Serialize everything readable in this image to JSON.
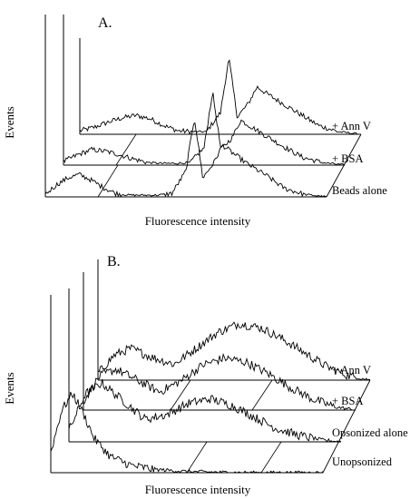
{
  "chart_data": [
    {
      "panel": "A.",
      "type": "line",
      "style": "3d-stacked-histogram",
      "xlabel": "Fluorescence intensity",
      "ylabel": "Events",
      "grid": false,
      "series": [
        {
          "name": "+ Ann V",
          "shape": [
            {
              "x": 0.0,
              "y": 4
            },
            {
              "x": 0.05,
              "y": 8
            },
            {
              "x": 0.1,
              "y": 14
            },
            {
              "x": 0.15,
              "y": 19
            },
            {
              "x": 0.2,
              "y": 22
            },
            {
              "x": 0.25,
              "y": 18
            },
            {
              "x": 0.3,
              "y": 10
            },
            {
              "x": 0.35,
              "y": 4
            },
            {
              "x": 0.4,
              "y": 3
            },
            {
              "x": 0.45,
              "y": 3
            },
            {
              "x": 0.5,
              "y": 25
            },
            {
              "x": 0.53,
              "y": 88
            },
            {
              "x": 0.56,
              "y": 20
            },
            {
              "x": 0.6,
              "y": 36
            },
            {
              "x": 0.63,
              "y": 55
            },
            {
              "x": 0.67,
              "y": 46
            },
            {
              "x": 0.72,
              "y": 36
            },
            {
              "x": 0.78,
              "y": 24
            },
            {
              "x": 0.85,
              "y": 10
            },
            {
              "x": 0.92,
              "y": 3
            },
            {
              "x": 1.0,
              "y": 0
            }
          ]
        },
        {
          "name": "+ BSA",
          "shape": [
            {
              "x": 0.0,
              "y": 4
            },
            {
              "x": 0.05,
              "y": 12
            },
            {
              "x": 0.1,
              "y": 18
            },
            {
              "x": 0.15,
              "y": 16
            },
            {
              "x": 0.2,
              "y": 12
            },
            {
              "x": 0.25,
              "y": 7
            },
            {
              "x": 0.3,
              "y": 3
            },
            {
              "x": 0.35,
              "y": 2
            },
            {
              "x": 0.4,
              "y": 2
            },
            {
              "x": 0.45,
              "y": 3
            },
            {
              "x": 0.5,
              "y": 20
            },
            {
              "x": 0.53,
              "y": 85
            },
            {
              "x": 0.56,
              "y": 18
            },
            {
              "x": 0.6,
              "y": 32
            },
            {
              "x": 0.63,
              "y": 52
            },
            {
              "x": 0.67,
              "y": 44
            },
            {
              "x": 0.72,
              "y": 34
            },
            {
              "x": 0.78,
              "y": 22
            },
            {
              "x": 0.85,
              "y": 9
            },
            {
              "x": 0.92,
              "y": 3
            },
            {
              "x": 1.0,
              "y": 0
            }
          ]
        },
        {
          "name": "Beads alone",
          "shape": [
            {
              "x": 0.0,
              "y": 3
            },
            {
              "x": 0.04,
              "y": 14
            },
            {
              "x": 0.08,
              "y": 22
            },
            {
              "x": 0.12,
              "y": 26
            },
            {
              "x": 0.16,
              "y": 20
            },
            {
              "x": 0.2,
              "y": 12
            },
            {
              "x": 0.25,
              "y": 4
            },
            {
              "x": 0.3,
              "y": 2
            },
            {
              "x": 0.35,
              "y": 2
            },
            {
              "x": 0.4,
              "y": 2
            },
            {
              "x": 0.45,
              "y": 4
            },
            {
              "x": 0.5,
              "y": 30
            },
            {
              "x": 0.53,
              "y": 92
            },
            {
              "x": 0.56,
              "y": 22
            },
            {
              "x": 0.6,
              "y": 40
            },
            {
              "x": 0.63,
              "y": 60
            },
            {
              "x": 0.67,
              "y": 50
            },
            {
              "x": 0.72,
              "y": 38
            },
            {
              "x": 0.78,
              "y": 26
            },
            {
              "x": 0.85,
              "y": 10
            },
            {
              "x": 0.92,
              "y": 3
            },
            {
              "x": 1.0,
              "y": 0
            }
          ]
        }
      ]
    },
    {
      "panel": "B.",
      "type": "line",
      "style": "3d-stacked-histogram",
      "xlabel": "Fluorescence intensity",
      "ylabel": "Events",
      "grid": false,
      "series": [
        {
          "name": "+ Ann V",
          "shape": [
            {
              "x": 0.0,
              "y": 6
            },
            {
              "x": 0.06,
              "y": 22
            },
            {
              "x": 0.12,
              "y": 28
            },
            {
              "x": 0.2,
              "y": 20
            },
            {
              "x": 0.28,
              "y": 14
            },
            {
              "x": 0.36,
              "y": 28
            },
            {
              "x": 0.44,
              "y": 42
            },
            {
              "x": 0.52,
              "y": 50
            },
            {
              "x": 0.6,
              "y": 46
            },
            {
              "x": 0.68,
              "y": 36
            },
            {
              "x": 0.76,
              "y": 24
            },
            {
              "x": 0.84,
              "y": 12
            },
            {
              "x": 0.92,
              "y": 4
            },
            {
              "x": 1.0,
              "y": 0
            }
          ]
        },
        {
          "name": "+ BSA",
          "shape": [
            {
              "x": 0.0,
              "y": 8
            },
            {
              "x": 0.06,
              "y": 30
            },
            {
              "x": 0.12,
              "y": 36
            },
            {
              "x": 0.2,
              "y": 26
            },
            {
              "x": 0.28,
              "y": 16
            },
            {
              "x": 0.36,
              "y": 26
            },
            {
              "x": 0.44,
              "y": 40
            },
            {
              "x": 0.52,
              "y": 46
            },
            {
              "x": 0.6,
              "y": 42
            },
            {
              "x": 0.68,
              "y": 32
            },
            {
              "x": 0.76,
              "y": 20
            },
            {
              "x": 0.84,
              "y": 10
            },
            {
              "x": 0.92,
              "y": 3
            },
            {
              "x": 1.0,
              "y": 0
            }
          ]
        },
        {
          "name": "Opsonized alone",
          "shape": [
            {
              "x": 0.0,
              "y": 10
            },
            {
              "x": 0.06,
              "y": 42
            },
            {
              "x": 0.12,
              "y": 52
            },
            {
              "x": 0.2,
              "y": 36
            },
            {
              "x": 0.28,
              "y": 20
            },
            {
              "x": 0.36,
              "y": 24
            },
            {
              "x": 0.44,
              "y": 34
            },
            {
              "x": 0.52,
              "y": 38
            },
            {
              "x": 0.6,
              "y": 32
            },
            {
              "x": 0.68,
              "y": 22
            },
            {
              "x": 0.76,
              "y": 12
            },
            {
              "x": 0.84,
              "y": 6
            },
            {
              "x": 0.92,
              "y": 2
            },
            {
              "x": 1.0,
              "y": 0
            }
          ]
        },
        {
          "name": "Unopsonized",
          "shape": [
            {
              "x": 0.0,
              "y": 18
            },
            {
              "x": 0.04,
              "y": 55
            },
            {
              "x": 0.08,
              "y": 70
            },
            {
              "x": 0.12,
              "y": 52
            },
            {
              "x": 0.16,
              "y": 30
            },
            {
              "x": 0.22,
              "y": 14
            },
            {
              "x": 0.3,
              "y": 6
            },
            {
              "x": 0.38,
              "y": 3
            },
            {
              "x": 0.5,
              "y": 1
            },
            {
              "x": 0.7,
              "y": 0
            },
            {
              "x": 1.0,
              "y": 0
            }
          ]
        }
      ]
    }
  ]
}
